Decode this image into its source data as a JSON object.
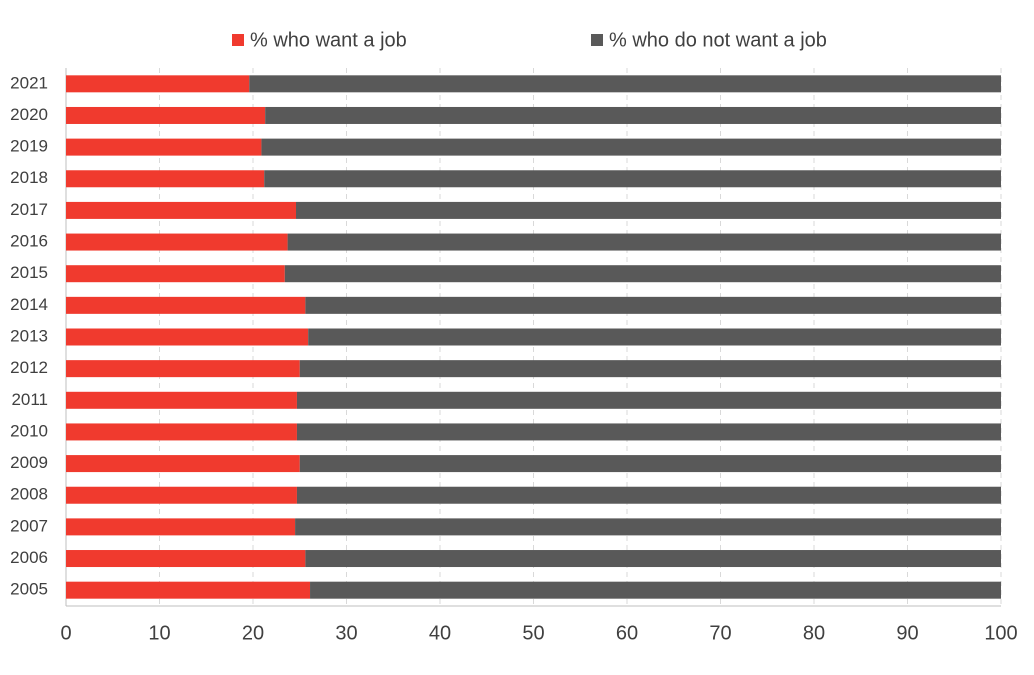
{
  "chart_data": {
    "type": "stacked-bar-horizontal",
    "categories": [
      "2021",
      "2020",
      "2019",
      "2018",
      "2017",
      "2016",
      "2015",
      "2014",
      "2013",
      "2012",
      "2011",
      "2010",
      "2009",
      "2008",
      "2007",
      "2006",
      "2005"
    ],
    "series": [
      {
        "name": "% who want a job",
        "color": "#f03a2e",
        "values": [
          19.6,
          21.3,
          20.9,
          21.2,
          24.6,
          23.7,
          23.4,
          25.6,
          25.9,
          25.0,
          24.7,
          24.7,
          25.0,
          24.7,
          24.5,
          25.6,
          26.1
        ]
      },
      {
        "name": "% who do not want a job",
        "color": "#595959",
        "values": [
          80.4,
          78.7,
          79.1,
          78.8,
          75.4,
          76.3,
          76.6,
          74.4,
          74.1,
          75.0,
          75.3,
          75.3,
          75.0,
          75.3,
          75.5,
          74.4,
          73.9
        ]
      }
    ],
    "xlim": [
      0,
      100
    ],
    "xticks": [
      0,
      10,
      20,
      30,
      40,
      50,
      60,
      70,
      80,
      90,
      100
    ],
    "grid": true,
    "legend": "top"
  }
}
